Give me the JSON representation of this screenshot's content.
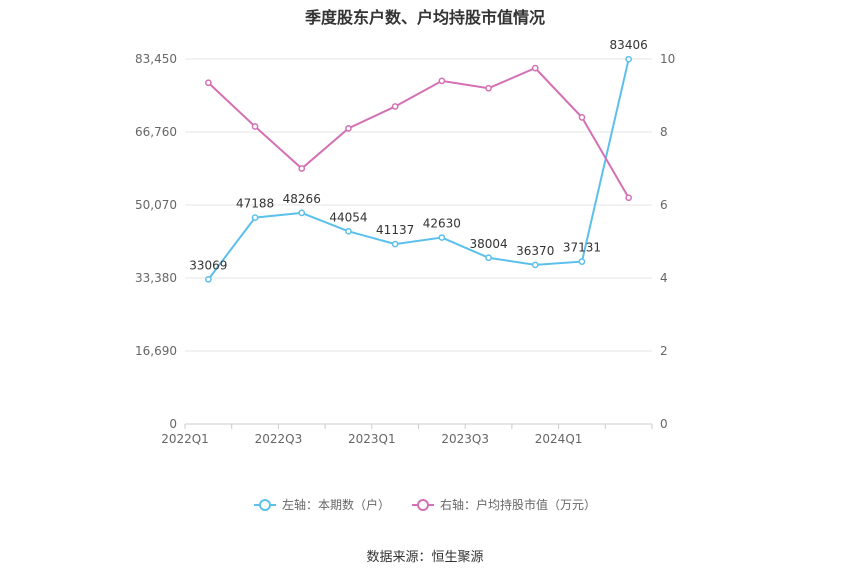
{
  "chart_data": {
    "type": "line",
    "title": "季度股东户数、户均持股市值情况",
    "categories": [
      "2022Q1",
      "2022Q2",
      "2022Q3",
      "2022Q4",
      "2023Q1",
      "2023Q2",
      "2023Q3",
      "2023Q4",
      "2024Q1",
      "2024Q2"
    ],
    "x_tick_labels": [
      "2022Q1",
      "",
      "2022Q3",
      "",
      "2023Q1",
      "",
      "2023Q3",
      "",
      "2024Q1",
      ""
    ],
    "left_axis": {
      "ylim": [
        0,
        83450
      ],
      "ticks": [
        "0",
        "16,690",
        "33,380",
        "50,070",
        "66,760",
        "83,450"
      ]
    },
    "right_axis": {
      "ylim": [
        0,
        10
      ],
      "ticks": [
        "0",
        "2",
        "4",
        "6",
        "8",
        "10"
      ]
    },
    "grid": true,
    "legend_position": "bottom",
    "series": [
      {
        "name": "左轴：本期数（户）",
        "axis": "left",
        "color": "#5bc0eb",
        "values": [
          33069,
          47188,
          48266,
          44054,
          41137,
          42630,
          38004,
          36370,
          37131,
          83406
        ],
        "labels": [
          "33069",
          "47188",
          "48266",
          "44054",
          "41137",
          "42630",
          "38004",
          "36370",
          "37131",
          "83406"
        ]
      },
      {
        "name": "右轴：户均持股市值（万元）",
        "axis": "right",
        "color": "#d470b4",
        "values": [
          9.35,
          8.15,
          7.0,
          8.1,
          8.7,
          9.4,
          9.2,
          9.75,
          8.4,
          6.2
        ]
      }
    ]
  },
  "source": "数据来源：恒生聚源"
}
